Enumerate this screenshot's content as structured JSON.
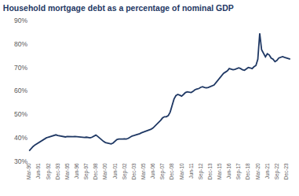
{
  "chart_data": {
    "type": "line",
    "title": "Household mortgage debt as a percentage of nominal GDP",
    "color": "#1f3864",
    "categories": [
      "Mar-90",
      null,
      null,
      null,
      null,
      "Jun-91",
      null,
      null,
      null,
      null,
      "Sep-92",
      null,
      null,
      null,
      null,
      "Dec-93",
      null,
      null,
      null,
      null,
      "Mar-95",
      null,
      null,
      null,
      null,
      "Jun-96",
      null,
      null,
      null,
      null,
      "Sep-97",
      null,
      null,
      null,
      null,
      "Dec-98",
      null,
      null,
      null,
      null,
      "Mar-00",
      null,
      null,
      null,
      null,
      "Jun-01",
      null,
      null,
      null,
      null,
      "Sep-02",
      null,
      null,
      null,
      null,
      "Dec-03",
      null,
      null,
      null,
      null,
      "Mar-05",
      null,
      null,
      null,
      null,
      "Jun-06",
      null,
      null,
      null,
      null,
      "Sep-07",
      null,
      null,
      null,
      null,
      "Dec-08",
      null,
      null,
      null,
      null,
      "Mar-10",
      null,
      null,
      null,
      null,
      "Jun-11",
      null,
      null,
      null,
      null,
      "Sep-12",
      null,
      null,
      null,
      null,
      "Dec-13",
      null,
      null,
      null,
      null,
      "Mar-15",
      null,
      null,
      null,
      null,
      "Jun-16",
      null,
      null,
      null,
      null,
      "Sep-17",
      null,
      null,
      null,
      null,
      "Dec-18",
      null,
      null,
      null,
      null,
      "Mar-20",
      null,
      null,
      null,
      null,
      "Jun-21",
      null,
      null,
      null,
      null,
      "Sep-22",
      null,
      null,
      null,
      null,
      "Dec-23",
      null,
      null
    ],
    "values": [
      34.5,
      35.5,
      36.3,
      37.0,
      37.5,
      38.0,
      38.6,
      39.2,
      39.6,
      40.0,
      40.3,
      40.6,
      40.9,
      41.2,
      41.3,
      41.0,
      40.8,
      40.6,
      40.5,
      40.4,
      40.6,
      40.5,
      40.4,
      40.5,
      40.6,
      40.5,
      40.4,
      40.3,
      40.4,
      40.2,
      40.3,
      40.1,
      40.0,
      40.3,
      40.8,
      41.2,
      40.6,
      39.8,
      39.0,
      38.5,
      38.0,
      37.8,
      37.6,
      37.4,
      37.8,
      38.5,
      39.3,
      39.5,
      39.4,
      39.5,
      39.6,
      39.5,
      39.8,
      40.3,
      40.8,
      41.0,
      41.2,
      41.5,
      41.8,
      42.2,
      42.5,
      42.7,
      42.9,
      43.3,
      43.7,
      44.2,
      45.0,
      45.8,
      46.5,
      47.5,
      48.5,
      49.0,
      49.0,
      49.5,
      51.0,
      54.0,
      56.5,
      58.0,
      58.5,
      58.2,
      57.8,
      58.5,
      59.3,
      59.6,
      59.5,
      59.3,
      59.8,
      60.5,
      60.8,
      61.0,
      61.5,
      61.8,
      61.5,
      61.3,
      61.5,
      61.8,
      62.0,
      62.5,
      63.5,
      64.5,
      65.5,
      66.5,
      67.5,
      68.0,
      68.5,
      69.5,
      69.3,
      69.0,
      69.2,
      69.5,
      69.8,
      69.5,
      69.0,
      68.8,
      69.5,
      70.0,
      69.8,
      69.5,
      70.3,
      70.8,
      73.5,
      84.5,
      77.5,
      76.0,
      74.5,
      75.8,
      75.3,
      74.0,
      73.5,
      72.5,
      73.0,
      74.0,
      74.3,
      74.6,
      74.3,
      74.0,
      73.8,
      73.5
    ],
    "ylim": [
      30,
      90
    ],
    "yticks": [
      {
        "value": 30,
        "label": "30%"
      },
      {
        "value": 40,
        "label": "40%"
      },
      {
        "value": 50,
        "label": "50%"
      },
      {
        "value": 60,
        "label": "60%"
      },
      {
        "value": 70,
        "label": "70%"
      },
      {
        "value": 80,
        "label": "80%"
      },
      {
        "value": 90,
        "label": "90%"
      }
    ],
    "grid": false
  }
}
